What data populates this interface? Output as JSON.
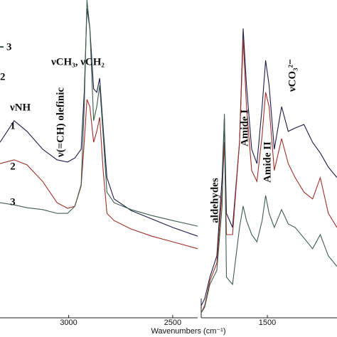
{
  "chart_data": [
    {
      "type": "line",
      "xlim": [
        3330,
        2380
      ],
      "ylim": [
        0,
        100
      ],
      "xticks": [
        3000,
        2500
      ],
      "x_label": "Wavenumbers (cm⁻¹)",
      "x": [
        3330,
        3262,
        3200,
        3125,
        3056,
        3005,
        2970,
        2940,
        2925,
        2912,
        2898,
        2880,
        2865,
        2851,
        2834,
        2816,
        2782,
        2700,
        2600,
        2500,
        2380
      ],
      "series": [
        {
          "name": "1",
          "color": "#1c1c4a",
          "values": [
            54.5,
            61.4,
            58.0,
            52.3,
            48.9,
            48.2,
            49.5,
            52.3,
            70.5,
            97.3,
            90.9,
            71.6,
            70.5,
            75.0,
            59.1,
            43.2,
            36.4,
            32.7,
            30.0,
            27.3,
            24.5
          ]
        },
        {
          "name": "2",
          "color": "#9e3028",
          "values": [
            47.7,
            48.9,
            47.3,
            42.0,
            35.2,
            33.4,
            34.1,
            40.5,
            54.5,
            68.2,
            65.9,
            54.5,
            58.0,
            62.5,
            45.5,
            31.8,
            29.5,
            26.8,
            24.5,
            22.7,
            20.5
          ]
        },
        {
          "name": "3",
          "color": "#3d5e4a",
          "values": [
            35.2,
            34.5,
            33.6,
            33.0,
            31.8,
            31.8,
            34.1,
            40.9,
            65.9,
            100,
            90.9,
            61.4,
            65.9,
            72.7,
            56.8,
            38.6,
            35.2,
            33.0,
            31.1,
            29.5,
            27.7
          ]
        }
      ],
      "annotations": [
        "νNH",
        "ν(=CH) olefinic",
        "νCH₃, νCH₂"
      ]
    },
    {
      "type": "line",
      "xlim": [
        1880,
        1100
      ],
      "ylim": [
        0,
        100
      ],
      "xticks": [
        1500
      ],
      "x": [
        1880,
        1860,
        1830,
        1790,
        1760,
        1747,
        1735,
        1700,
        1660,
        1639,
        1620,
        1590,
        1560,
        1530,
        1510,
        1490,
        1460,
        1418,
        1380,
        1340,
        1290,
        1240,
        1196,
        1150,
        1100
      ],
      "series": [
        {
          "name": "1",
          "color": "#1c1c4a",
          "values": [
            2.3,
            4.5,
            11.4,
            18.2,
            43.2,
            62.5,
            31.8,
            27.3,
            54.5,
            90.9,
            72.7,
            52.3,
            47.7,
            65.9,
            80.7,
            72.7,
            52.3,
            65.9,
            58.0,
            59.1,
            60.2,
            54.5,
            51.1,
            46.6,
            43.2
          ]
        },
        {
          "name": "2",
          "color": "#9e3028",
          "values": [
            0,
            2.3,
            10.2,
            15.9,
            38.6,
            54.5,
            25.0,
            25.0,
            54.5,
            87.5,
            65.9,
            45.5,
            42.0,
            56.8,
            70.5,
            65.9,
            45.5,
            55.7,
            47.7,
            43.2,
            38.6,
            36.4,
            43.2,
            31.8,
            27.3
          ]
        },
        {
          "name": "3",
          "color": "#3d5e4a",
          "values": [
            0,
            1.8,
            9.1,
            13.6,
            34.1,
            63.6,
            11.4,
            9.1,
            27.3,
            34.1,
            29.5,
            25.0,
            22.7,
            29.5,
            37.5,
            31.8,
            27.3,
            33.0,
            28.4,
            27.3,
            23.9,
            20.5,
            25.0,
            18.2,
            14.8
          ]
        }
      ],
      "annotations": [
        "aldehydes",
        "Amide I",
        "Amide II",
        "νCO₃²⁻"
      ]
    }
  ]
}
